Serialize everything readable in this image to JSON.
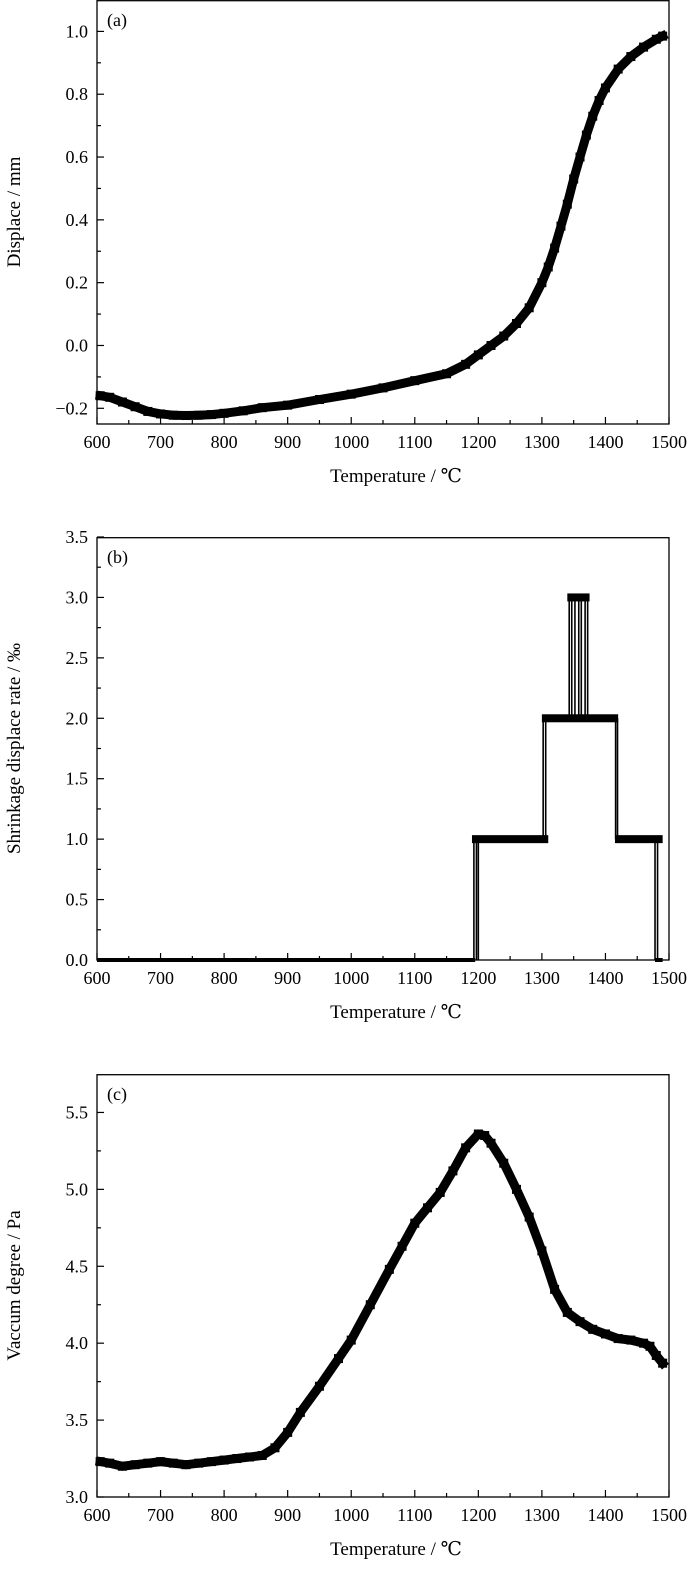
{
  "chart_data": [
    {
      "type": "line",
      "panel_label": "(a)",
      "xlabel": "Temperature / ℃",
      "ylabel": "Displace / mm",
      "xlim": [
        600,
        1500
      ],
      "ylim": [
        -0.25,
        1.1
      ],
      "xticks": [
        600,
        700,
        800,
        900,
        1000,
        1100,
        1200,
        1300,
        1400,
        1500
      ],
      "xtick_labels": [
        "600",
        "700",
        "800",
        "900",
        "1000",
        "1100",
        "1200",
        "1300",
        "1400",
        "1500"
      ],
      "yticks": [
        -0.2,
        0.0,
        0.2,
        0.4,
        0.6,
        0.8,
        1.0
      ],
      "ytick_labels": [
        "−0.2",
        "0.0",
        "0.2",
        "0.4",
        "0.6",
        "0.8",
        "1.0"
      ],
      "grid": false,
      "x": [
        605,
        620,
        640,
        660,
        680,
        700,
        720,
        740,
        760,
        780,
        800,
        830,
        860,
        900,
        950,
        1000,
        1050,
        1100,
        1150,
        1180,
        1200,
        1220,
        1240,
        1260,
        1280,
        1300,
        1310,
        1320,
        1330,
        1340,
        1350,
        1360,
        1370,
        1380,
        1390,
        1400,
        1420,
        1440,
        1460,
        1480,
        1490
      ],
      "y": [
        -0.16,
        -0.165,
        -0.18,
        -0.195,
        -0.21,
        -0.218,
        -0.222,
        -0.223,
        -0.222,
        -0.22,
        -0.216,
        -0.208,
        -0.198,
        -0.19,
        -0.172,
        -0.155,
        -0.135,
        -0.112,
        -0.09,
        -0.06,
        -0.03,
        0.0,
        0.03,
        0.07,
        0.12,
        0.2,
        0.25,
        0.31,
        0.38,
        0.45,
        0.53,
        0.6,
        0.67,
        0.73,
        0.78,
        0.82,
        0.88,
        0.92,
        0.95,
        0.975,
        0.985
      ]
    },
    {
      "type": "line",
      "panel_label": "(b)",
      "xlabel": "Temperature / ℃",
      "ylabel": "Shrinkage displace rate / ‰",
      "xlim": [
        600,
        1500
      ],
      "ylim": [
        0.0,
        3.5
      ],
      "xticks": [
        600,
        700,
        800,
        900,
        1000,
        1100,
        1200,
        1300,
        1400,
        1500
      ],
      "xtick_labels": [
        "600",
        "700",
        "800",
        "900",
        "1000",
        "1100",
        "1200",
        "1300",
        "1400",
        "1500"
      ],
      "yticks": [
        0.0,
        0.5,
        1.0,
        1.5,
        2.0,
        2.5,
        3.0,
        3.5
      ],
      "ytick_labels": [
        "0.0",
        "0.5",
        "1.0",
        "1.5",
        "2.0",
        "2.5",
        "3.0",
        "3.5"
      ],
      "grid": false,
      "levels": [
        {
          "x_start": 600,
          "x_end": 1195,
          "value": 0
        },
        {
          "x_start": 1190,
          "x_end": 1310,
          "value": 1
        },
        {
          "x_start": 1300,
          "x_end": 1420,
          "value": 2
        },
        {
          "x_start": 1340,
          "x_end": 1375,
          "value": 3
        },
        {
          "x_start": 1415,
          "x_end": 1490,
          "value": 1
        },
        {
          "x_start": 1478,
          "x_end": 1490,
          "value": 0
        }
      ],
      "transitions": [
        1193,
        1197,
        1200,
        1302,
        1306,
        1343,
        1347,
        1352,
        1358,
        1362,
        1368,
        1372,
        1416,
        1419,
        1478,
        1482
      ]
    },
    {
      "type": "line",
      "panel_label": "(c)",
      "xlabel": "Temperature / ℃",
      "ylabel": "Vaccum degree / Pa",
      "xlim": [
        600,
        1500
      ],
      "ylim": [
        3.0,
        5.75
      ],
      "xticks": [
        600,
        700,
        800,
        900,
        1000,
        1100,
        1200,
        1300,
        1400,
        1500
      ],
      "xtick_labels": [
        "600",
        "700",
        "800",
        "900",
        "1000",
        "1100",
        "1200",
        "1300",
        "1400",
        "1500"
      ],
      "yticks": [
        3.0,
        3.5,
        4.0,
        4.5,
        5.0,
        5.5
      ],
      "ytick_labels": [
        "3.0",
        "3.5",
        "4.0",
        "4.5",
        "5.0",
        "5.5"
      ],
      "grid": false,
      "x": [
        605,
        620,
        640,
        660,
        680,
        700,
        720,
        740,
        760,
        780,
        800,
        820,
        840,
        860,
        880,
        900,
        920,
        950,
        980,
        1000,
        1030,
        1060,
        1080,
        1100,
        1120,
        1140,
        1160,
        1180,
        1200,
        1210,
        1220,
        1240,
        1260,
        1280,
        1300,
        1320,
        1340,
        1360,
        1380,
        1400,
        1420,
        1440,
        1460,
        1470,
        1480,
        1490
      ],
      "y": [
        3.23,
        3.22,
        3.2,
        3.21,
        3.22,
        3.23,
        3.22,
        3.21,
        3.22,
        3.23,
        3.24,
        3.25,
        3.26,
        3.27,
        3.32,
        3.42,
        3.55,
        3.72,
        3.9,
        4.02,
        4.25,
        4.48,
        4.63,
        4.78,
        4.88,
        4.98,
        5.12,
        5.27,
        5.36,
        5.35,
        5.3,
        5.17,
        5.0,
        4.82,
        4.6,
        4.35,
        4.2,
        4.14,
        4.09,
        4.06,
        4.03,
        4.02,
        4.0,
        3.98,
        3.92,
        3.87
      ]
    }
  ]
}
